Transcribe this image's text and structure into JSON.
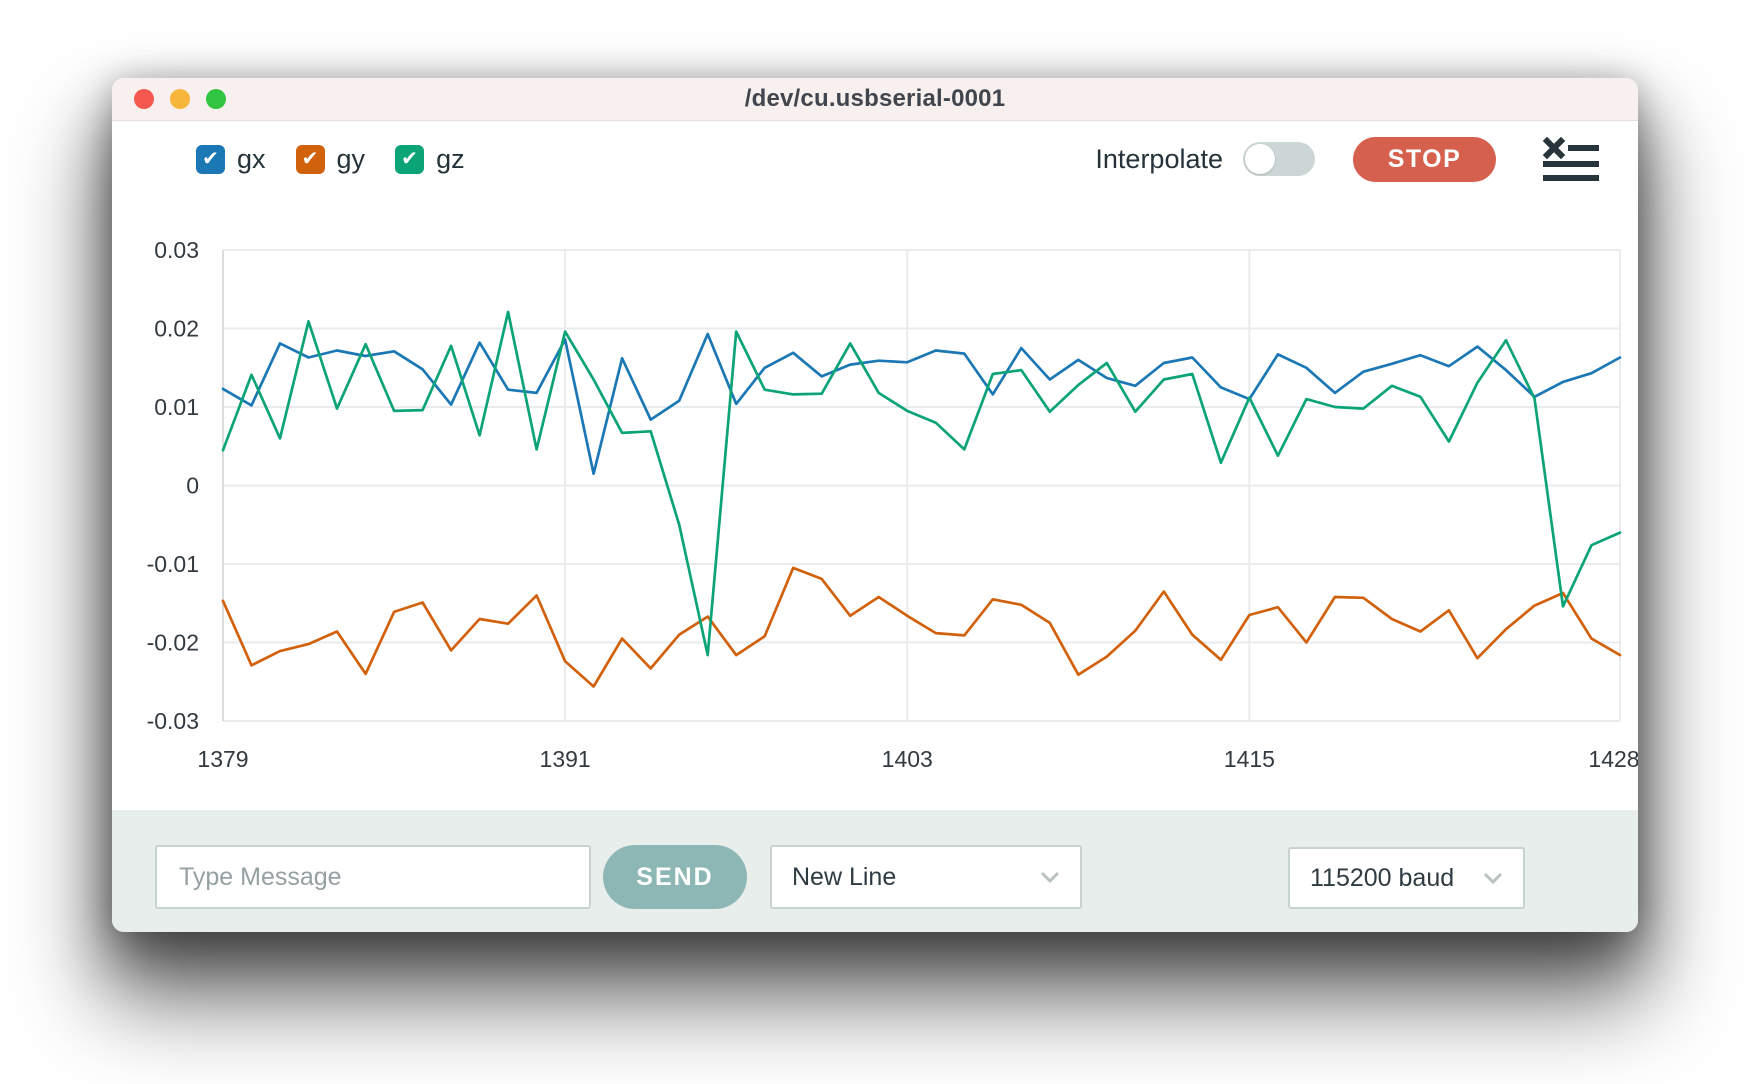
{
  "window": {
    "title": "/dev/cu.usbserial-0001"
  },
  "toolbar": {
    "series_toggles": [
      {
        "label": "gx",
        "color": "#1b78b5",
        "checked": true
      },
      {
        "label": "gy",
        "color": "#d2610c",
        "checked": true
      },
      {
        "label": "gz",
        "color": "#0ca477",
        "checked": true
      }
    ],
    "check_glyph": "✔",
    "interpolate_label": "Interpolate",
    "interpolate_on": false,
    "stop_label": "STOP"
  },
  "chart_data": {
    "type": "line",
    "title": "",
    "xlabel": "",
    "ylabel": "",
    "xlim": [
      1379,
      1428
    ],
    "ylim": [
      -0.03,
      0.03
    ],
    "grid": true,
    "legend_position": "toolbar-top-left",
    "xticks": [
      1379,
      1391,
      1403,
      1415,
      1428
    ],
    "yticks": [
      "0.03",
      "0.02",
      "0.01",
      "0",
      "-0.01",
      "-0.02",
      "-0.03"
    ],
    "x": [
      1379,
      1380,
      1381,
      1382,
      1383,
      1384,
      1385,
      1386,
      1387,
      1388,
      1389,
      1390,
      1391,
      1392,
      1393,
      1394,
      1395,
      1396,
      1397,
      1398,
      1399,
      1400,
      1401,
      1402,
      1403,
      1404,
      1405,
      1406,
      1407,
      1408,
      1409,
      1410,
      1411,
      1412,
      1413,
      1414,
      1415,
      1416,
      1417,
      1418,
      1419,
      1420,
      1421,
      1422,
      1423,
      1424,
      1425,
      1426,
      1427,
      1428
    ],
    "series": [
      {
        "name": "gx",
        "color": "#1b78b5",
        "values": [
          0.0123,
          0.0102,
          0.0181,
          0.0163,
          0.0172,
          0.0165,
          0.0171,
          0.0148,
          0.0103,
          0.0182,
          0.0122,
          0.0118,
          0.0186,
          0.0015,
          0.0162,
          0.0084,
          0.0108,
          0.0193,
          0.0104,
          0.015,
          0.0169,
          0.0139,
          0.0154,
          0.0159,
          0.0157,
          0.0172,
          0.0168,
          0.0116,
          0.0175,
          0.0135,
          0.016,
          0.0137,
          0.0127,
          0.0156,
          0.0163,
          0.0125,
          0.011,
          0.0167,
          0.015,
          0.0118,
          0.0145,
          0.0155,
          0.0166,
          0.0152,
          0.0177,
          0.0147,
          0.0113,
          0.0132,
          0.0143,
          0.0163
        ]
      },
      {
        "name": "gy",
        "color": "#d2610c",
        "values": [
          -0.0147,
          -0.0229,
          -0.0211,
          -0.0202,
          -0.0186,
          -0.024,
          -0.0161,
          -0.0149,
          -0.021,
          -0.017,
          -0.0176,
          -0.014,
          -0.0224,
          -0.0256,
          -0.0195,
          -0.0233,
          -0.019,
          -0.0167,
          -0.0216,
          -0.0192,
          -0.0105,
          -0.0119,
          -0.0166,
          -0.0142,
          -0.0166,
          -0.0188,
          -0.0191,
          -0.0145,
          -0.0152,
          -0.0175,
          -0.0241,
          -0.0218,
          -0.0185,
          -0.0135,
          -0.019,
          -0.0222,
          -0.0165,
          -0.0155,
          -0.02,
          -0.0142,
          -0.0143,
          -0.017,
          -0.0186,
          -0.0159,
          -0.022,
          -0.0183,
          -0.0153,
          -0.0137,
          -0.0195,
          -0.0216
        ]
      },
      {
        "name": "gz",
        "color": "#0ca477",
        "values": [
          0.0045,
          0.0141,
          0.006,
          0.0209,
          0.0098,
          0.018,
          0.0095,
          0.0096,
          0.0178,
          0.0064,
          0.0221,
          0.0046,
          0.0196,
          0.0135,
          0.0067,
          0.0069,
          -0.005,
          -0.0216,
          0.0196,
          0.0122,
          0.0116,
          0.0117,
          0.0181,
          0.0118,
          0.0095,
          0.008,
          0.0046,
          0.0142,
          0.0147,
          0.0094,
          0.0128,
          0.0156,
          0.0094,
          0.0135,
          0.0142,
          0.0029,
          0.0112,
          0.0038,
          0.011,
          0.01,
          0.0098,
          0.0127,
          0.0113,
          0.0056,
          0.0131,
          0.0185,
          0.0111,
          -0.0154,
          -0.0076,
          -0.006
        ]
      }
    ]
  },
  "message_bar": {
    "input_placeholder": "Type Message",
    "send_label": "SEND",
    "line_ending": "New Line",
    "baud": "115200 baud"
  }
}
